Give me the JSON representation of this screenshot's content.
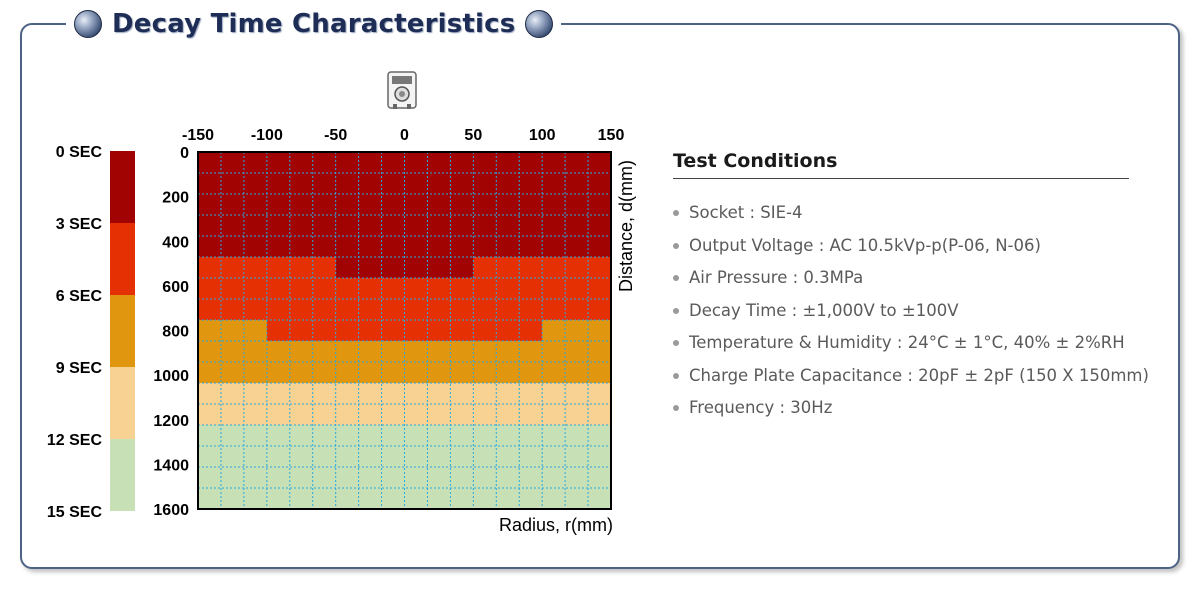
{
  "title": "Decay Time Characteristics",
  "conditions": {
    "heading": "Test Conditions",
    "items": [
      "Socket : SIE-4",
      "Output Voltage : AC 10.5kVp-p(P-06, N-06)",
      "Air Pressure : 0.3MPa",
      "Decay Time : ±1,000V to ±100V",
      "Temperature & Humidity : 24°C ± 1°C, 40% ± 2%RH",
      "Charge Plate Capacitance : 20pF ± 2pF (150 X 150mm)",
      "Frequency : 30Hz"
    ]
  },
  "chart_data": {
    "type": "heatmap",
    "xlabel": "Radius, r(mm)",
    "ylabel": "Distance, d(mm)",
    "x_ticks": [
      "-150",
      "-100",
      "-50",
      "0",
      "50",
      "100",
      "150"
    ],
    "y_ticks": [
      "0",
      "200",
      "400",
      "600",
      "800",
      "1000",
      "1200",
      "1400",
      "1600"
    ],
    "xlim": [
      -150,
      150
    ],
    "ylim": [
      0,
      1600
    ],
    "grid": true,
    "legend": {
      "placement": "left",
      "labels": [
        "0 SEC",
        "3 SEC",
        "6 SEC",
        "9 SEC",
        "12 SEC",
        "15 SEC"
      ],
      "bands": [
        {
          "from": 0,
          "to": 3,
          "color": "#a10303"
        },
        {
          "from": 3,
          "to": 6,
          "color": "#e53004"
        },
        {
          "from": 6,
          "to": 9,
          "color": "#e0960e"
        },
        {
          "from": 9,
          "to": 12,
          "color": "#f7d293"
        },
        {
          "from": 12,
          "to": 15,
          "color": "#c8e0b5"
        }
      ]
    },
    "level_colors": [
      "#a10303",
      "#e53004",
      "#e0960e",
      "#f7d293",
      "#c8e0b5"
    ],
    "cell_levels": [
      [
        0,
        0,
        0,
        0,
        0,
        0,
        0,
        0,
        0,
        0,
        0,
        0,
        0,
        0,
        0,
        0,
        0,
        0
      ],
      [
        0,
        0,
        0,
        0,
        0,
        0,
        0,
        0,
        0,
        0,
        0,
        0,
        0,
        0,
        0,
        0,
        0,
        0
      ],
      [
        0,
        0,
        0,
        0,
        0,
        0,
        0,
        0,
        0,
        0,
        0,
        0,
        0,
        0,
        0,
        0,
        0,
        0
      ],
      [
        0,
        0,
        0,
        0,
        0,
        0,
        0,
        0,
        0,
        0,
        0,
        0,
        0,
        0,
        0,
        0,
        0,
        0
      ],
      [
        0,
        0,
        0,
        0,
        0,
        0,
        0,
        0,
        0,
        0,
        0,
        0,
        0,
        0,
        0,
        0,
        0,
        0
      ],
      [
        1,
        1,
        1,
        1,
        1,
        1,
        0,
        0,
        0,
        0,
        0,
        0,
        1,
        1,
        1,
        1,
        1,
        1
      ],
      [
        1,
        1,
        1,
        1,
        1,
        1,
        1,
        1,
        1,
        1,
        1,
        1,
        1,
        1,
        1,
        1,
        1,
        1
      ],
      [
        1,
        1,
        1,
        1,
        1,
        1,
        1,
        1,
        1,
        1,
        1,
        1,
        1,
        1,
        1,
        1,
        1,
        1
      ],
      [
        2,
        2,
        2,
        1,
        1,
        1,
        1,
        1,
        1,
        1,
        1,
        1,
        1,
        1,
        1,
        2,
        2,
        2
      ],
      [
        2,
        2,
        2,
        2,
        2,
        2,
        2,
        2,
        2,
        2,
        2,
        2,
        2,
        2,
        2,
        2,
        2,
        2
      ],
      [
        2,
        2,
        2,
        2,
        2,
        2,
        2,
        2,
        2,
        2,
        2,
        2,
        2,
        2,
        2,
        2,
        2,
        2
      ],
      [
        3,
        3,
        3,
        3,
        3,
        3,
        3,
        3,
        3,
        3,
        3,
        3,
        3,
        3,
        3,
        3,
        3,
        3
      ],
      [
        3,
        3,
        3,
        3,
        3,
        3,
        3,
        3,
        3,
        3,
        3,
        3,
        3,
        3,
        3,
        3,
        3,
        3
      ],
      [
        4,
        4,
        4,
        4,
        4,
        4,
        4,
        4,
        4,
        4,
        4,
        4,
        4,
        4,
        4,
        4,
        4,
        4
      ],
      [
        4,
        4,
        4,
        4,
        4,
        4,
        4,
        4,
        4,
        4,
        4,
        4,
        4,
        4,
        4,
        4,
        4,
        4
      ],
      [
        4,
        4,
        4,
        4,
        4,
        4,
        4,
        4,
        4,
        4,
        4,
        4,
        4,
        4,
        4,
        4,
        4,
        4
      ],
      [
        4,
        4,
        4,
        4,
        4,
        4,
        4,
        4,
        4,
        4,
        4,
        4,
        4,
        4,
        4,
        4,
        4,
        4
      ]
    ],
    "icon": "ionizer-device-icon"
  }
}
